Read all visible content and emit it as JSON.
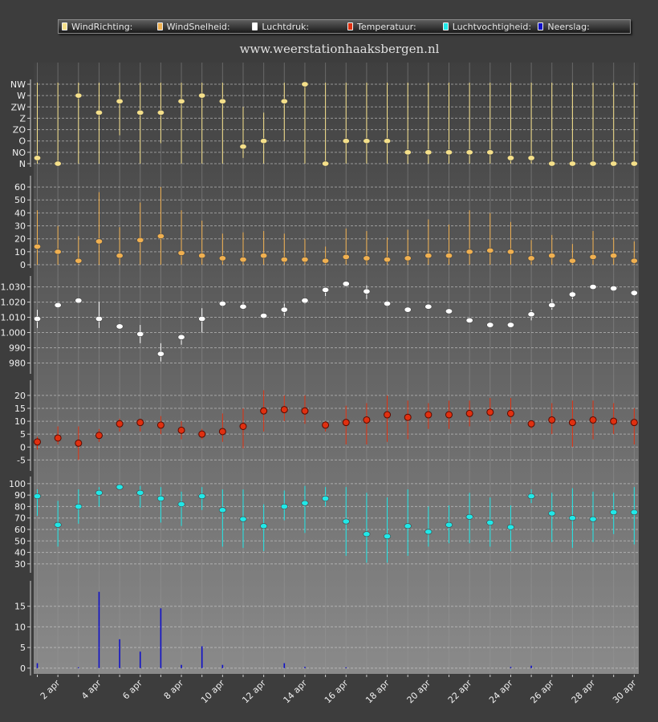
{
  "legend": [
    {
      "label": "WindRichting:",
      "color": "#f5e08a"
    },
    {
      "label": "WindSnelheid:",
      "color": "#f0b050"
    },
    {
      "label": "Luchtdruk:",
      "color": "#ffffff"
    },
    {
      "label": "Temperatuur:",
      "color": "#e03010"
    },
    {
      "label": "Luchtvochtigheid:",
      "color": "#20e8e8"
    },
    {
      "label": "Neerslag:",
      "color": "#1010c8"
    }
  ],
  "site_title": "www.weerstationhaaksbergen.nl",
  "chart_data": {
    "type": "scatter",
    "days": [
      1,
      2,
      3,
      4,
      5,
      6,
      7,
      8,
      9,
      10,
      11,
      12,
      13,
      14,
      15,
      16,
      17,
      18,
      19,
      20,
      21,
      22,
      23,
      24,
      25,
      26,
      27,
      28,
      29,
      30
    ],
    "x_tick_labels": [
      {
        "day": 2,
        "label": "2 apr"
      },
      {
        "day": 4,
        "label": "4 apr"
      },
      {
        "day": 6,
        "label": "6 apr"
      },
      {
        "day": 8,
        "label": "8 apr"
      },
      {
        "day": 10,
        "label": "10 apr"
      },
      {
        "day": 12,
        "label": "12 apr"
      },
      {
        "day": 14,
        "label": "14 apr"
      },
      {
        "day": 16,
        "label": "16 apr"
      },
      {
        "day": 18,
        "label": "18 apr"
      },
      {
        "day": 20,
        "label": "20 apr"
      },
      {
        "day": 22,
        "label": "22 apr"
      },
      {
        "day": 24,
        "label": "24 apr"
      },
      {
        "day": 26,
        "label": "26 apr"
      },
      {
        "day": 28,
        "label": "28 apr"
      },
      {
        "day": 30,
        "label": "30 apr"
      }
    ],
    "panels": [
      {
        "name": "WindRichting",
        "color": "#f5e08a",
        "mark": "dot",
        "ylim": [
          0,
          7
        ],
        "categorical_ticks": [
          "N",
          "NO",
          "O",
          "ZO",
          "Z",
          "ZW",
          "W",
          "NW"
        ],
        "values": [
          0.5,
          0,
          6,
          4.5,
          5.5,
          4.5,
          4.5,
          5.5,
          6,
          5.5,
          1.5,
          2,
          5.5,
          7,
          0,
          2,
          2,
          2,
          1,
          1,
          1,
          1,
          1,
          0.5,
          0.5,
          0,
          0,
          0,
          0,
          0
        ],
        "low": [
          0,
          0,
          0,
          0,
          2.5,
          0,
          1.8,
          0,
          0,
          0,
          0.5,
          0,
          2,
          0,
          0,
          0,
          0,
          0,
          0,
          0,
          0,
          0,
          0,
          0,
          0,
          0,
          0,
          0,
          0,
          0
        ],
        "high": [
          8,
          8,
          8,
          8,
          7.5,
          8,
          8,
          8,
          8,
          8,
          5,
          4.5,
          7.5,
          8,
          8,
          8,
          8,
          8,
          8,
          8,
          8,
          8,
          8,
          8,
          8,
          8,
          8,
          8,
          8,
          8
        ]
      },
      {
        "name": "WindSnelheid",
        "color": "#f0b050",
        "mark": "dot",
        "ylim": [
          0,
          65
        ],
        "ticks": [
          0,
          10,
          20,
          30,
          40,
          50,
          60
        ],
        "values": [
          14,
          10,
          3,
          18,
          7,
          19,
          22,
          9,
          7,
          5,
          4,
          7,
          4,
          4,
          3,
          6,
          5,
          4,
          5,
          7,
          7,
          10,
          11,
          10,
          5,
          7,
          3,
          6,
          7,
          3
        ],
        "low": [
          0,
          0,
          0,
          0,
          0,
          0,
          0,
          0,
          0,
          0,
          0,
          0,
          0,
          0,
          0,
          0,
          0,
          0,
          0,
          0,
          0,
          0,
          0,
          0,
          0,
          0,
          0,
          0,
          0,
          0
        ],
        "high": [
          42,
          30,
          22,
          56,
          29,
          48,
          60,
          42,
          34,
          24,
          25,
          26,
          24,
          20,
          14,
          28,
          26,
          21,
          27,
          35,
          31,
          42,
          40,
          33,
          19,
          23,
          16,
          26,
          21,
          18
        ]
      },
      {
        "name": "Luchtdruk",
        "color": "#ffffff",
        "mark": "dot",
        "ylim": [
          975,
          1034
        ],
        "ticks": [
          980,
          990,
          1000,
          1010,
          1020,
          1030
        ],
        "tick_labels": [
          "980",
          "990",
          "1.000",
          "1.010",
          "1.020",
          "1.030"
        ],
        "values": [
          1009,
          1018,
          1021,
          1009,
          1004,
          999,
          986,
          997,
          1009,
          1019,
          1017,
          1011,
          1015,
          1021,
          1028,
          1032,
          1027,
          1019,
          1015,
          1017,
          1014,
          1008,
          1005,
          1005,
          1012,
          1018,
          1025,
          1030,
          1029,
          1026
        ],
        "low": [
          1003,
          1016,
          1020,
          1003,
          1003,
          993,
          981,
          992,
          1000,
          1017,
          1015,
          1010,
          1011,
          1019,
          1024,
          1031,
          1022,
          1017,
          1014,
          1016,
          1013,
          1007,
          1004,
          1004,
          1008,
          1015,
          1022,
          1029,
          1028,
          1024
        ],
        "high": [
          1015,
          1020,
          1022,
          1020,
          1005,
          1005,
          993,
          998,
          1016,
          1021,
          1020,
          1012,
          1019,
          1022,
          1029,
          1033,
          1031,
          1021,
          1016,
          1018,
          1015,
          1009,
          1006,
          1006,
          1015,
          1022,
          1027,
          1031,
          1030,
          1028
        ]
      },
      {
        "name": "Temperatuur",
        "color": "#e03010",
        "mark": "circle",
        "ylim": [
          -8,
          24
        ],
        "ticks": [
          -5,
          0,
          5,
          10,
          15,
          20
        ],
        "values": [
          2,
          3.5,
          1.5,
          4.5,
          9,
          9.5,
          8.5,
          6.5,
          5,
          6,
          8,
          14,
          14.5,
          14,
          8.5,
          9.5,
          10.5,
          12.5,
          11.5,
          12.5,
          12.5,
          13,
          13.5,
          13,
          9,
          10.5,
          9.5,
          10.5,
          10,
          9.5
        ],
        "low": [
          -1,
          1,
          -5,
          2,
          6,
          6,
          5,
          3,
          3,
          2,
          -0.5,
          6,
          10,
          9,
          6,
          1,
          1,
          2,
          3,
          7,
          7,
          8,
          10,
          9,
          7,
          5,
          0,
          3,
          5,
          1
        ],
        "high": [
          4,
          8,
          8,
          7,
          11,
          11,
          12,
          10,
          7,
          13,
          15,
          22,
          20,
          20,
          10,
          16,
          17,
          20,
          18,
          17,
          18,
          18,
          19,
          19,
          10,
          17,
          18,
          18,
          17,
          15
        ]
      },
      {
        "name": "Luchtvochtigheid",
        "color": "#20e8e8",
        "mark": "dot",
        "ylim": [
          25,
          102
        ],
        "ticks": [
          30,
          40,
          50,
          60,
          70,
          80,
          90,
          100
        ],
        "values": [
          89,
          64,
          80,
          92,
          97,
          92,
          87,
          82,
          89,
          77,
          69,
          63,
          80,
          83,
          87,
          67,
          56,
          54,
          63,
          58,
          64,
          71,
          66,
          62,
          89,
          74,
          70,
          69,
          75,
          75
        ],
        "low": [
          72,
          45,
          65,
          80,
          95,
          79,
          66,
          63,
          77,
          45,
          44,
          41,
          68,
          57,
          80,
          37,
          31,
          31,
          37,
          45,
          48,
          48,
          45,
          41,
          83,
          49,
          44,
          49,
          56,
          47
        ],
        "high": [
          95,
          85,
          95,
          97,
          99,
          98,
          97,
          93,
          97,
          95,
          95,
          82,
          94,
          98,
          97,
          97,
          92,
          88,
          95,
          80,
          81,
          92,
          88,
          81,
          95,
          92,
          96,
          93,
          92,
          97
        ]
      },
      {
        "name": "Neerslag",
        "color": "#1010c8",
        "mark": "bar",
        "ylim": [
          -1,
          20
        ],
        "ticks": [
          0,
          5,
          10,
          15
        ],
        "values": [
          1.2,
          0,
          0.2,
          18.5,
          7,
          4,
          14.5,
          0.8,
          5.3,
          0.8,
          0,
          0,
          1.2,
          0.3,
          0,
          0.2,
          0,
          0,
          0,
          0,
          0,
          0,
          0,
          0.3,
          0.6,
          0,
          0,
          0,
          0,
          0
        ]
      }
    ]
  }
}
